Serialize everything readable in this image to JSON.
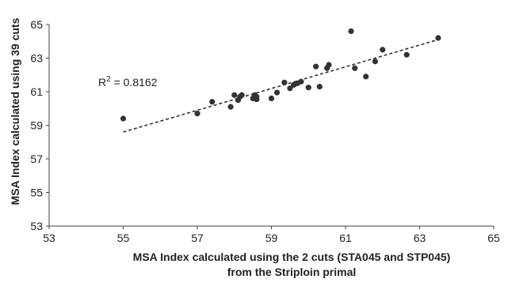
{
  "chart_data": {
    "type": "scatter",
    "title": "",
    "xlabel_line1": "MSA Index calculated using the 2 cuts (STA045 and STP045)",
    "xlabel_line2": "from the Striploin primal",
    "ylabel": "MSA Index calculated using 39 cuts",
    "xlim": [
      53,
      65
    ],
    "ylim": [
      53,
      65
    ],
    "xticks": [
      "53",
      "55",
      "57",
      "59",
      "61",
      "63",
      "65"
    ],
    "yticks": [
      "53",
      "55",
      "57",
      "59",
      "61",
      "63",
      "65"
    ],
    "grid": false,
    "legend": "none",
    "trendline": {
      "style": "dashed-linear",
      "r2_label": "R",
      "r2_exp": "2",
      "r2_value": " = 0.8162"
    },
    "series": [
      {
        "points": [
          [
            55.0,
            59.4
          ],
          [
            57.0,
            59.7
          ],
          [
            57.4,
            60.4
          ],
          [
            57.9,
            60.1
          ],
          [
            58.0,
            60.8
          ],
          [
            58.1,
            60.5
          ],
          [
            58.15,
            60.7
          ],
          [
            58.2,
            60.8
          ],
          [
            58.5,
            60.6
          ],
          [
            58.55,
            60.8
          ],
          [
            58.6,
            60.7
          ],
          [
            58.6,
            60.55
          ],
          [
            59.0,
            60.6
          ],
          [
            59.15,
            60.95
          ],
          [
            59.35,
            61.55
          ],
          [
            59.5,
            61.2
          ],
          [
            59.6,
            61.4
          ],
          [
            59.7,
            61.5
          ],
          [
            59.8,
            61.6
          ],
          [
            60.0,
            61.25
          ],
          [
            60.2,
            62.5
          ],
          [
            60.3,
            61.3
          ],
          [
            60.5,
            62.4
          ],
          [
            60.55,
            62.6
          ],
          [
            61.15,
            64.6
          ],
          [
            61.25,
            62.4
          ],
          [
            61.55,
            61.9
          ],
          [
            61.8,
            62.8
          ],
          [
            62.0,
            63.5
          ],
          [
            62.65,
            63.2
          ],
          [
            63.5,
            64.2
          ]
        ],
        "color": "#333333"
      }
    ],
    "trend_line_endpoints": [
      [
        55.0,
        58.6
      ],
      [
        63.5,
        64.1
      ]
    ],
    "colors": {
      "marker": "#333333",
      "axis": "#444444",
      "trend": "#333333"
    }
  }
}
